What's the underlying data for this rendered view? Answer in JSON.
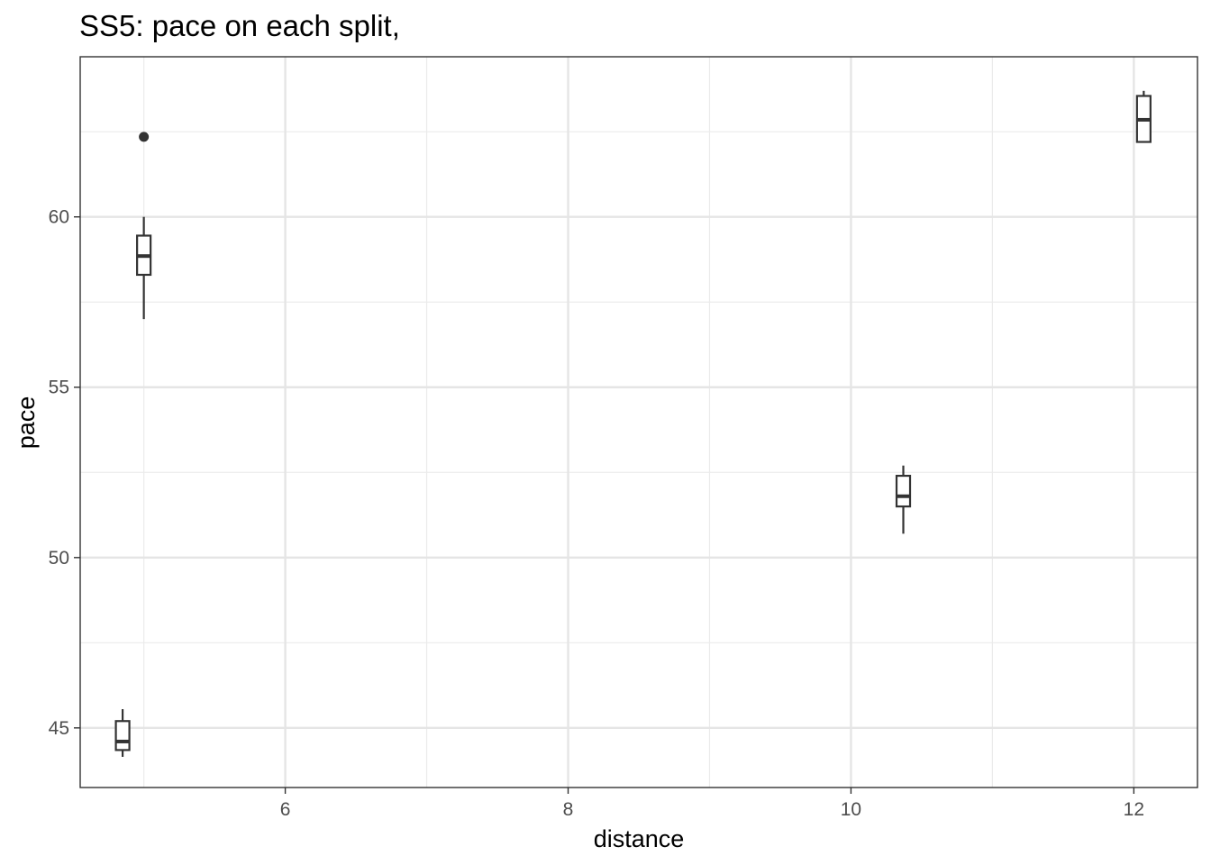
{
  "chart_data": {
    "type": "boxplot",
    "title": "SS5: pace on each split,",
    "xlabel": "distance",
    "ylabel": "pace",
    "xlim": [
      4.55,
      12.45
    ],
    "ylim": [
      43.25,
      64.7
    ],
    "x_ticks": [
      6,
      8,
      10,
      12
    ],
    "x_minor": [
      5,
      7,
      9,
      11
    ],
    "y_ticks": [
      45,
      50,
      55,
      60
    ],
    "y_minor": [
      47.5,
      52.5,
      57.5,
      62.5
    ],
    "grid": true,
    "boxes": [
      {
        "x": 4.85,
        "min": 44.15,
        "q1": 44.35,
        "median": 44.6,
        "q3": 45.2,
        "max": 45.55,
        "outliers": []
      },
      {
        "x": 5.0,
        "min": 57.0,
        "q1": 58.3,
        "median": 58.85,
        "q3": 59.45,
        "max": 60.0,
        "outliers": [
          62.35
        ]
      },
      {
        "x": 10.37,
        "min": 50.7,
        "q1": 51.5,
        "median": 51.8,
        "q3": 52.4,
        "max": 52.7,
        "outliers": []
      },
      {
        "x": 12.07,
        "min": 62.2,
        "q1": 62.2,
        "median": 62.85,
        "q3": 63.55,
        "max": 63.7,
        "outliers": []
      }
    ]
  }
}
